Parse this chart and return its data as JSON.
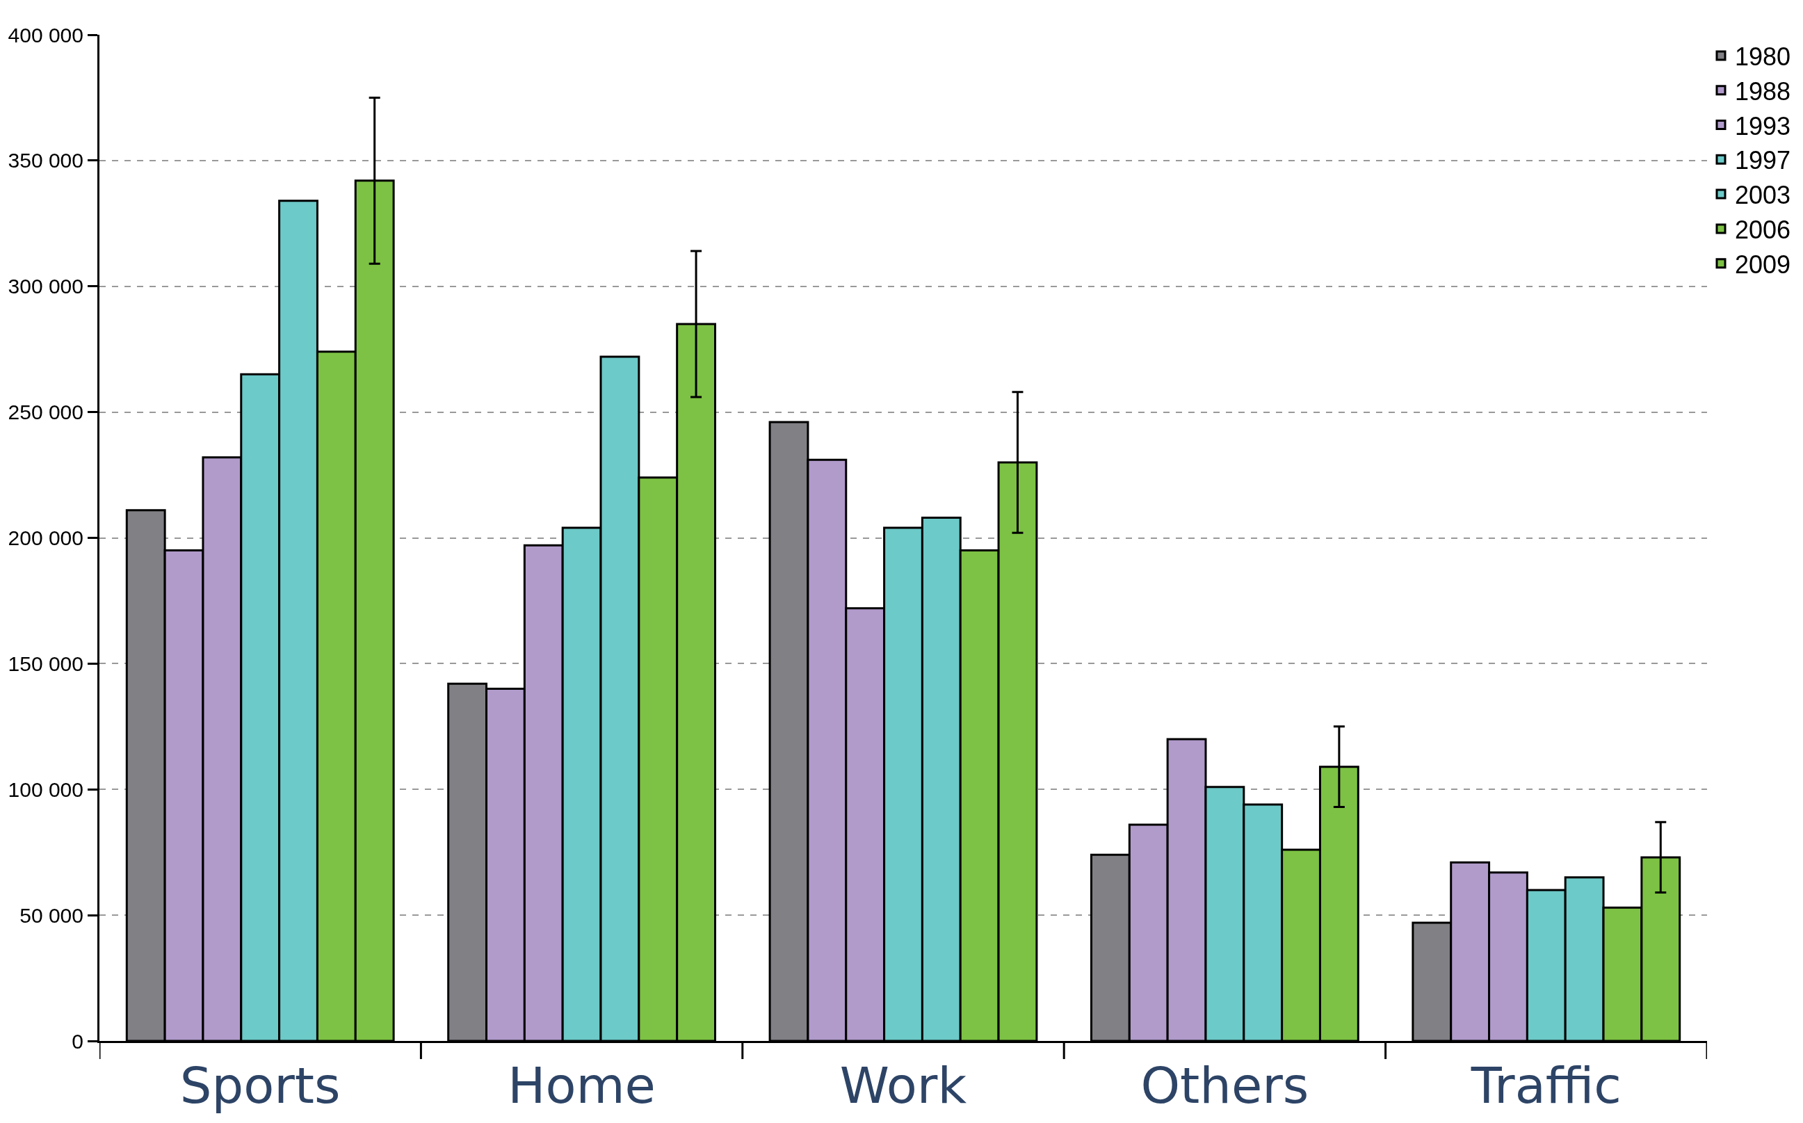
{
  "chart_data": {
    "type": "bar",
    "categories": [
      "Sports",
      "Home",
      "Work",
      "Others",
      "Traffic"
    ],
    "series": [
      {
        "name": "1980",
        "color": "#808085",
        "values": [
          211000,
          142000,
          246000,
          74000,
          47000
        ]
      },
      {
        "name": "1988",
        "color": "#b19bcb",
        "values": [
          195000,
          140000,
          231000,
          86000,
          71000
        ]
      },
      {
        "name": "1993",
        "color": "#b19bcb",
        "values": [
          232000,
          197000,
          172000,
          120000,
          67000
        ]
      },
      {
        "name": "1997",
        "color": "#6ccac8",
        "values": [
          265000,
          204000,
          204000,
          101000,
          60000
        ]
      },
      {
        "name": "2003",
        "color": "#6ccac8",
        "values": [
          334000,
          272000,
          208000,
          94000,
          65000
        ]
      },
      {
        "name": "2006",
        "color": "#7dc244",
        "values": [
          274000,
          224000,
          195000,
          76000,
          53000
        ]
      },
      {
        "name": "2009",
        "color": "#7dc244",
        "values": [
          342000,
          285000,
          230000,
          109000,
          73000
        ],
        "errors": [
          33000,
          29000,
          28000,
          16000,
          14000
        ]
      }
    ],
    "ylim": [
      0,
      400000
    ],
    "yticks": [
      {
        "value": 0,
        "label": "0"
      },
      {
        "value": 50000,
        "label": "50 000"
      },
      {
        "value": 100000,
        "label": "100 000"
      },
      {
        "value": 150000,
        "label": "150 000"
      },
      {
        "value": 200000,
        "label": "200 000"
      },
      {
        "value": 250000,
        "label": "250 000"
      },
      {
        "value": 300000,
        "label": "300 000"
      },
      {
        "value": 350000,
        "label": "350 000"
      },
      {
        "value": 400000,
        "label": "400 000"
      }
    ],
    "grid": "y",
    "legend": "top right"
  }
}
